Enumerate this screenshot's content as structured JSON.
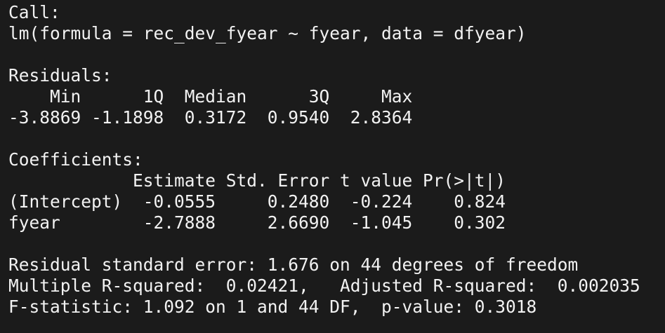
{
  "console": {
    "lines": [
      "Call:",
      "lm(formula = rec_dev_fyear ~ fyear, data = dfyear)",
      "",
      "Residuals:",
      "    Min      1Q  Median      3Q     Max ",
      "-3.8869 -1.1898  0.3172  0.9540  2.8364 ",
      "",
      "Coefficients:",
      "            Estimate Std. Error t value Pr(>|t|)",
      "(Intercept)  -0.0555     0.2480  -0.224    0.824",
      "fyear        -2.7888     2.6690  -1.045    0.302",
      "",
      "Residual standard error: 1.676 on 44 degrees of freedom",
      "Multiple R-squared:  0.02421,\tAdjusted R-squared:  0.002035 ",
      "F-statistic: 1.092 on 1 and 44 DF,  p-value: 0.3018"
    ]
  }
}
